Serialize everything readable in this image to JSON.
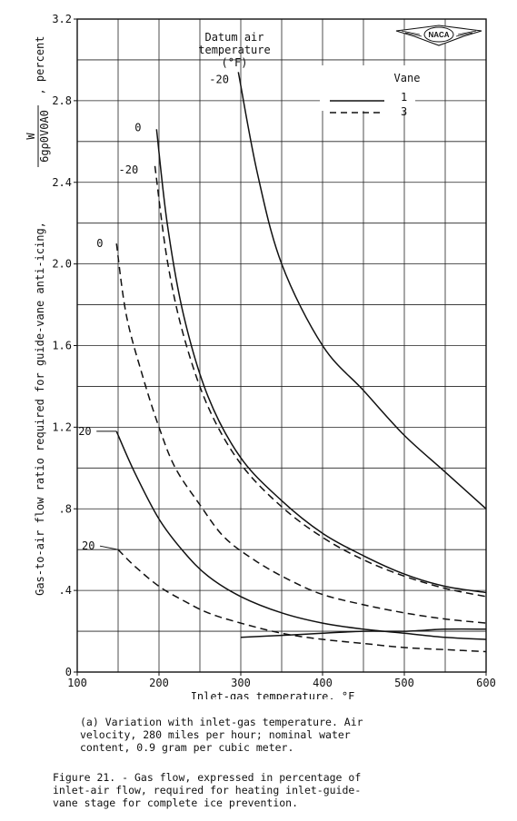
{
  "chart_data": {
    "type": "line",
    "title": "",
    "xlabel": "Inlet-gas temperature, °F",
    "ylabel_main": "Gas-to-air flow ratio required for guide-vane anti-icing,",
    "ylabel_formula_num": "W",
    "ylabel_formula_den": "6gρ0V0A0",
    "ylabel_unit": ", percent",
    "xlim": [
      100,
      600
    ],
    "ylim": [
      0,
      3.2
    ],
    "x_ticks": [
      100,
      200,
      300,
      400,
      500,
      600
    ],
    "x_tick_labels": [
      "100",
      "200",
      "300",
      "400",
      "500",
      "600"
    ],
    "y_ticks": [
      0,
      0.4,
      0.8,
      1.2,
      1.6,
      2.0,
      2.4,
      2.8,
      3.2
    ],
    "y_tick_labels": [
      "0",
      ".4",
      ".8",
      "1.2",
      "1.6",
      "2.0",
      "2.4",
      "2.8",
      "3.2"
    ],
    "grid": true,
    "legend": {
      "title": "Vane",
      "placement": "top-right",
      "entries": [
        {
          "label": "1",
          "style": "solid"
        },
        {
          "label": "3",
          "style": "dashed"
        }
      ]
    },
    "annotation": {
      "line1": "Datum air",
      "line2": "temperature",
      "line3": "(°F)"
    },
    "series": [
      {
        "vane": "1",
        "label": "-20",
        "style": "solid",
        "x": [
          297,
          320,
          350,
          400,
          450,
          500,
          550,
          600
        ],
        "y": [
          2.94,
          2.45,
          2.0,
          1.6,
          1.38,
          1.16,
          0.98,
          0.8
        ]
      },
      {
        "vane": "1",
        "label": "0",
        "style": "solid",
        "x": [
          197,
          210,
          230,
          260,
          300,
          350,
          400,
          450,
          500,
          550,
          600
        ],
        "y": [
          2.66,
          2.2,
          1.75,
          1.35,
          1.05,
          0.84,
          0.68,
          0.57,
          0.48,
          0.42,
          0.39
        ]
      },
      {
        "vane": "3",
        "label": "-20",
        "style": "dashed",
        "x": [
          195,
          210,
          230,
          260,
          300,
          350,
          400,
          450,
          500,
          550,
          600
        ],
        "y": [
          2.48,
          2.02,
          1.65,
          1.3,
          1.02,
          0.81,
          0.66,
          0.55,
          0.47,
          0.41,
          0.37
        ]
      },
      {
        "vane": "3",
        "label": "0",
        "style": "dashed",
        "x": [
          148,
          160,
          180,
          200,
          220,
          250,
          280,
          320,
          360,
          400,
          450,
          500,
          550,
          600
        ],
        "y": [
          2.1,
          1.75,
          1.45,
          1.2,
          1.0,
          0.82,
          0.66,
          0.54,
          0.45,
          0.38,
          0.33,
          0.29,
          0.26,
          0.24
        ]
      },
      {
        "vane": "1",
        "label": "20",
        "style": "solid",
        "x": [
          148,
          170,
          200,
          230,
          260,
          300,
          350,
          400,
          450,
          500,
          550,
          600
        ],
        "y": [
          1.18,
          0.98,
          0.75,
          0.59,
          0.47,
          0.37,
          0.29,
          0.24,
          0.21,
          0.19,
          0.17,
          0.16
        ]
      },
      {
        "vane": "1",
        "label": "20",
        "style": "solid",
        "x": [
          300,
          350,
          400,
          450,
          500,
          550,
          600
        ],
        "y": [
          0.17,
          0.18,
          0.19,
          0.2,
          0.2,
          0.21,
          0.21
        ]
      },
      {
        "vane": "3",
        "label": "20",
        "style": "dashed",
        "x": [
          150,
          170,
          200,
          230,
          260,
          300,
          350,
          400,
          450,
          500,
          550,
          600
        ],
        "y": [
          0.6,
          0.52,
          0.42,
          0.35,
          0.29,
          0.24,
          0.19,
          0.16,
          0.14,
          0.12,
          0.11,
          0.1
        ]
      }
    ]
  },
  "logo_text": "NACA",
  "caption_a": "(a)  Variation with inlet-gas temperature.  Air\n     velocity, 280 miles per hour; nominal water\n     content, 0.9 gram per cubic meter.",
  "caption_fig": "Figure 21. - Gas flow, expressed in percentage of\n     inlet-air flow, required for heating inlet-guide-\n     vane stage for complete ice prevention."
}
